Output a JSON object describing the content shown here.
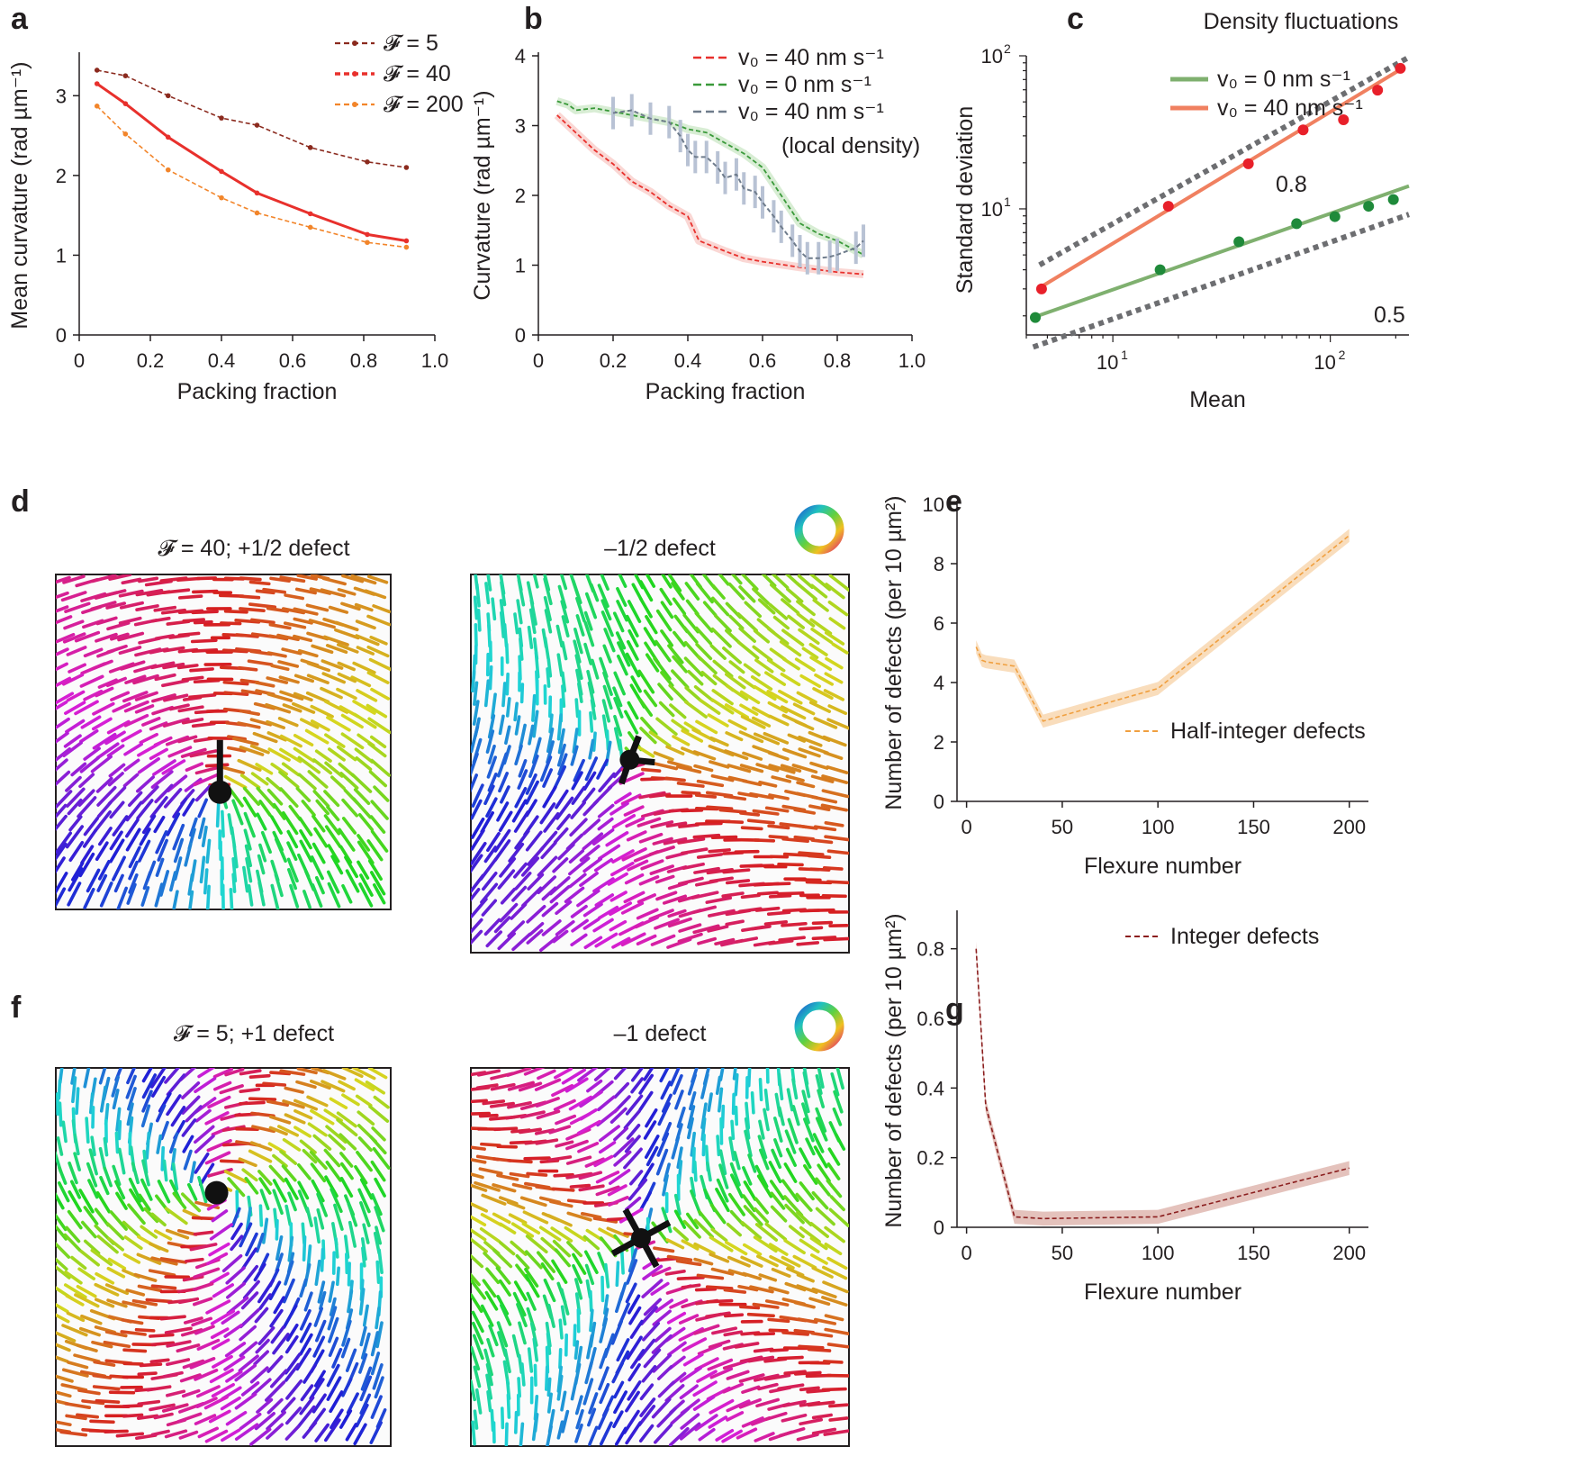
{
  "panels": {
    "a": "a",
    "b": "b",
    "c": "c",
    "d": "d",
    "e": "e",
    "f": "f",
    "g": "g"
  },
  "chart_data": [
    {
      "id": "a",
      "type": "line",
      "title": "",
      "xlabel": "Packing fraction",
      "ylabel": "Mean curvature (rad µm⁻¹)",
      "xlim": [
        0,
        1.0
      ],
      "ylim": [
        0,
        3.5
      ],
      "xticks": [
        0,
        0.2,
        0.4,
        0.6,
        0.8,
        1.0
      ],
      "xticklabels": [
        "0",
        "0.2",
        "0.4",
        "0.6",
        "0.8",
        "1.0"
      ],
      "yticks": [
        0,
        1,
        2,
        3
      ],
      "yticklabels": [
        "0",
        "1",
        "2",
        "3"
      ],
      "series": [
        {
          "name": "𝓕 = 5",
          "color": "#8b2a1e",
          "x": [
            0.05,
            0.13,
            0.25,
            0.4,
            0.5,
            0.65,
            0.81,
            0.92
          ],
          "values": [
            3.32,
            3.25,
            3.0,
            2.72,
            2.63,
            2.35,
            2.17,
            2.1
          ]
        },
        {
          "name": "𝓕 = 40",
          "color": "#e8302c",
          "x": [
            0.05,
            0.13,
            0.25,
            0.4,
            0.5,
            0.65,
            0.81,
            0.92
          ],
          "values": [
            3.15,
            2.9,
            2.48,
            2.05,
            1.78,
            1.52,
            1.26,
            1.18
          ]
        },
        {
          "name": "𝓕 = 200",
          "color": "#f2852a",
          "x": [
            0.05,
            0.13,
            0.25,
            0.4,
            0.5,
            0.65,
            0.81,
            0.92
          ],
          "values": [
            2.87,
            2.52,
            2.07,
            1.72,
            1.53,
            1.35,
            1.16,
            1.1
          ]
        }
      ]
    },
    {
      "id": "b",
      "type": "line",
      "title": "",
      "xlabel": "Packing fraction",
      "ylabel": "Curvature (rad µm⁻¹)",
      "xlim": [
        0,
        1.0
      ],
      "ylim": [
        0,
        4
      ],
      "xticks": [
        0,
        0.2,
        0.4,
        0.6,
        0.8,
        1.0
      ],
      "xticklabels": [
        "0",
        "0.2",
        "0.4",
        "0.6",
        "0.8",
        "1.0"
      ],
      "yticks": [
        0,
        1,
        2,
        3,
        4
      ],
      "yticklabels": [
        "0",
        "1",
        "2",
        "3",
        "4"
      ],
      "series": [
        {
          "name": "v₀ = 40 nm s⁻¹",
          "color": "#e8302c",
          "x": [
            0.05,
            0.08,
            0.1,
            0.15,
            0.2,
            0.25,
            0.3,
            0.35,
            0.4,
            0.43,
            0.5,
            0.55,
            0.6,
            0.7,
            0.8,
            0.87
          ],
          "values": [
            3.15,
            3.0,
            2.9,
            2.65,
            2.45,
            2.2,
            2.05,
            1.85,
            1.7,
            1.35,
            1.2,
            1.1,
            1.05,
            0.97,
            0.9,
            0.87
          ]
        },
        {
          "name": "v₀ = 0 nm s⁻¹",
          "color": "#3a9a3a",
          "x": [
            0.05,
            0.08,
            0.1,
            0.15,
            0.2,
            0.25,
            0.3,
            0.35,
            0.4,
            0.45,
            0.5,
            0.55,
            0.6,
            0.65,
            0.7,
            0.75,
            0.8,
            0.87
          ],
          "values": [
            3.35,
            3.3,
            3.22,
            3.25,
            3.2,
            3.15,
            3.1,
            3.05,
            2.95,
            2.9,
            2.75,
            2.6,
            2.4,
            2.0,
            1.6,
            1.45,
            1.35,
            1.15
          ]
        },
        {
          "name": "v₀ = 40 nm s⁻¹",
          "color": "#6f7c8c",
          "x": [
            0.2,
            0.25,
            0.3,
            0.35,
            0.38,
            0.4,
            0.42,
            0.45,
            0.48,
            0.5,
            0.53,
            0.55,
            0.58,
            0.6,
            0.63,
            0.65,
            0.68,
            0.7,
            0.72,
            0.75,
            0.78,
            0.8,
            0.85,
            0.87
          ],
          "values": [
            3.18,
            3.22,
            3.1,
            3.05,
            2.85,
            2.65,
            2.55,
            2.55,
            2.4,
            2.25,
            2.3,
            2.1,
            2.05,
            1.9,
            1.7,
            1.55,
            1.35,
            1.2,
            1.1,
            1.1,
            1.12,
            1.15,
            1.25,
            1.35
          ]
        }
      ],
      "legend_extra": "(local density)"
    },
    {
      "id": "c",
      "type": "scatter",
      "title": "Density fluctuations",
      "xlabel": "Mean",
      "ylabel": "Standard deviation",
      "xscale": "log",
      "yscale": "log",
      "xlim": [
        4,
        230
      ],
      "ylim": [
        1.5,
        100
      ],
      "xtick_base": "10",
      "xtick_exps": [
        "1",
        "2"
      ],
      "ytick_base": "10",
      "ytick_exps": [
        "1",
        "2"
      ],
      "series": [
        {
          "name": "v₀ = 0 nm s⁻¹",
          "color": "#7fb06f",
          "x": [
            4.4,
            16.5,
            38,
            70,
            105,
            150,
            195
          ],
          "values": [
            1.95,
            4.0,
            6.1,
            8.0,
            8.9,
            10.4,
            11.5
          ]
        },
        {
          "name": "v₀ = 40 nm s⁻¹",
          "color": "#f08060",
          "x": [
            4.7,
            18,
            42,
            75,
            115,
            165,
            210
          ],
          "values": [
            3.0,
            10.4,
            19.7,
            32.8,
            38.2,
            59.7,
            82.8
          ]
        }
      ],
      "fit_lines": [
        {
          "color": "#7fb06f",
          "x": [
            4.3,
            230
          ],
          "values": [
            1.95,
            14.1
          ]
        },
        {
          "color": "#f08060",
          "x": [
            4.6,
            215
          ],
          "values": [
            3.05,
            83
          ]
        }
      ],
      "guides": [
        {
          "label": "0.8",
          "x": [
            4.6,
            230
          ],
          "values": [
            4.3,
            98
          ]
        },
        {
          "label": "0.5",
          "x": [
            4.3,
            230
          ],
          "values": [
            1.25,
            9.2
          ]
        }
      ]
    },
    {
      "id": "e",
      "type": "line",
      "title": "",
      "xlabel": "Flexure number",
      "ylabel": "Number of defects (per 10 µm²)",
      "xlim": [
        -5,
        210
      ],
      "ylim": [
        0,
        10
      ],
      "xticks": [
        0,
        50,
        100,
        150,
        200
      ],
      "xticklabels": [
        "0",
        "50",
        "100",
        "150",
        "200"
      ],
      "yticks": [
        0,
        2,
        4,
        6,
        8,
        10
      ],
      "yticklabels": [
        "0",
        "2",
        "4",
        "6",
        "8",
        "10"
      ],
      "series": [
        {
          "name": "Half-integer defects",
          "color": "#f0a040",
          "band": "#f7cfa0",
          "band_width": 0.22,
          "x": [
            5,
            8,
            10,
            25,
            40,
            100,
            200
          ],
          "values": [
            5.2,
            4.75,
            4.7,
            4.55,
            2.7,
            3.8,
            8.95
          ]
        }
      ]
    },
    {
      "id": "g",
      "type": "line",
      "title": "",
      "xlabel": "Flexure number",
      "ylabel": "Number of defects (per 10 µm²)",
      "xlim": [
        -5,
        210
      ],
      "ylim": [
        0,
        0.9
      ],
      "xticks": [
        0,
        50,
        100,
        150,
        200
      ],
      "xticklabels": [
        "0",
        "50",
        "100",
        "150",
        "200"
      ],
      "yticks": [
        0,
        0.2,
        0.4,
        0.6,
        0.8
      ],
      "yticklabels": [
        "0",
        "0.2",
        "0.4",
        "0.6",
        "0.8"
      ],
      "series": [
        {
          "name": "Integer defects",
          "color": "#8b1e1e",
          "band": "#d9a8a0",
          "band_width": 0.02,
          "x": [
            5,
            10,
            25,
            40,
            100,
            200
          ],
          "values": [
            0.8,
            0.35,
            0.03,
            0.025,
            0.03,
            0.17
          ]
        }
      ]
    }
  ],
  "images": {
    "d_left_title": "𝓕 = 40; +1/2 defect",
    "d_right_title": "–1/2 defect",
    "f_left_title": "𝓕 = 5; +1 defect",
    "f_right_title": "–1 defect"
  }
}
